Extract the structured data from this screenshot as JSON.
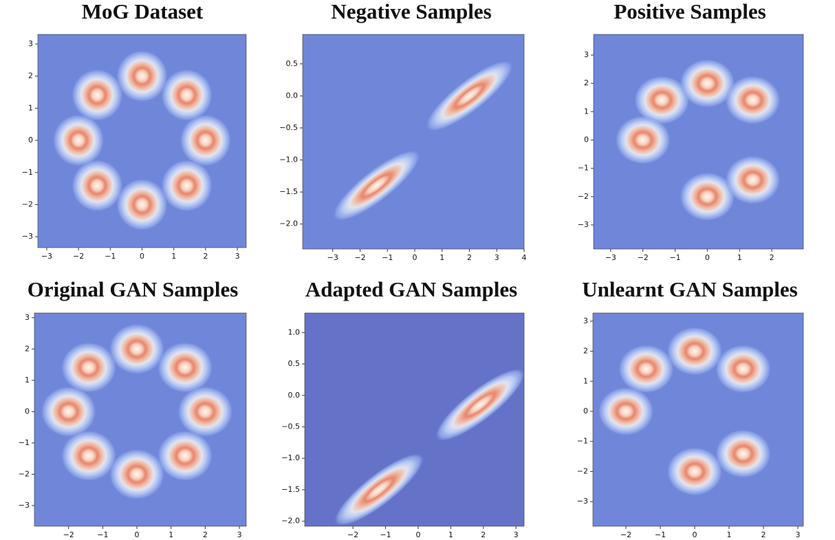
{
  "chart_data": [
    {
      "type": "contour",
      "title": "MoG Dataset",
      "background": "#7086d8",
      "xlim": [
        -3.28,
        3.28
      ],
      "ylim": [
        -3.34,
        3.3
      ],
      "xticks": [
        {
          "value": -3,
          "label": "−3"
        },
        {
          "value": -2,
          "label": "−2"
        },
        {
          "value": -1,
          "label": "−1"
        },
        0,
        1,
        2,
        3
      ],
      "yticks": [
        {
          "value": -3,
          "label": "−3"
        },
        {
          "value": -2,
          "label": "−2"
        },
        {
          "value": -1,
          "label": "−1"
        },
        0,
        1,
        2,
        3
      ],
      "centers": {
        "x": [
          0,
          1.41,
          2,
          1.41,
          0,
          -1.41,
          -2,
          -1.41
        ],
        "y": [
          2,
          1.41,
          0,
          -1.41,
          -2,
          -1.41,
          0,
          1.41
        ]
      }
    },
    {
      "type": "contour",
      "title": "Negative Samples",
      "background": "#7086d8",
      "xlim": [
        -4.1,
        4
      ],
      "ylim": [
        -2.39,
        0.96
      ],
      "xticks": [
        {
          "value": -3,
          "label": "−3"
        },
        {
          "value": -2,
          "label": "−2"
        },
        {
          "value": -1,
          "label": "−1"
        },
        0,
        1,
        2,
        3,
        4
      ],
      "yticks": [
        {
          "value": -2,
          "label": "−2.0"
        },
        {
          "value": -1.5,
          "label": "−1.5"
        },
        {
          "value": -1,
          "label": "−1.0"
        },
        {
          "value": -0.5,
          "label": "−0.5"
        },
        {
          "value": 0,
          "label": "0.0"
        },
        0.5
      ],
      "centers": {
        "x": [
          2,
          -1.4
        ],
        "y": [
          0,
          -1.4
        ]
      }
    },
    {
      "type": "contour",
      "title": "Positive Samples",
      "background": "#7086d8",
      "xlim": [
        -3.53,
        2.98
      ],
      "ylim": [
        -3.85,
        3.73
      ],
      "xticks": [
        {
          "value": -3,
          "label": "−3"
        },
        {
          "value": -2,
          "label": "−2"
        },
        {
          "value": -1,
          "label": "−1"
        },
        0,
        1,
        2
      ],
      "yticks": [
        {
          "value": -3,
          "label": "−3"
        },
        {
          "value": -2,
          "label": "−2"
        },
        {
          "value": -1,
          "label": "−1"
        },
        0,
        1,
        2,
        3
      ],
      "centers": {
        "x": [
          -1.41,
          0,
          1.41,
          -2,
          0,
          1.41
        ],
        "y": [
          1.41,
          2,
          1.41,
          0,
          -2,
          -1.41
        ]
      }
    },
    {
      "type": "contour",
      "title": "Original GAN Samples",
      "background": "#7086d8",
      "xlim": [
        -3.0,
        3.2
      ],
      "ylim": [
        -3.66,
        3.15
      ],
      "xticks": [
        {
          "value": -2,
          "label": "−2"
        },
        {
          "value": -1,
          "label": "−1"
        },
        0,
        1,
        2,
        3
      ],
      "yticks": [
        {
          "value": -3,
          "label": "−3"
        },
        {
          "value": -2,
          "label": "−2"
        },
        {
          "value": -1,
          "label": "−1"
        },
        0,
        1,
        2,
        3
      ],
      "centers": {
        "x": [
          0,
          1.41,
          2,
          1.41,
          0,
          -1.41,
          -2,
          -1.41
        ],
        "y": [
          2,
          1.41,
          0,
          -1.41,
          -2,
          -1.41,
          0,
          1.41
        ]
      }
    },
    {
      "type": "contour",
      "title": "Adapted GAN Samples",
      "background": "#6473c8",
      "xlim": [
        -3.48,
        3.25
      ],
      "ylim": [
        -2.08,
        1.31
      ],
      "xticks": [
        {
          "value": -2,
          "label": "−2"
        },
        {
          "value": -1,
          "label": "−1"
        },
        0,
        1,
        2,
        3
      ],
      "yticks": [
        {
          "value": -2,
          "label": "−2.0"
        },
        {
          "value": -1.5,
          "label": "−1.5"
        },
        {
          "value": -1,
          "label": "−1.0"
        },
        {
          "value": -0.5,
          "label": "−0.5"
        },
        {
          "value": 0,
          "label": "0.0"
        },
        0.5,
        {
          "value": 1,
          "label": "1.0"
        }
      ],
      "centers": {
        "x": [
          1.9,
          -1.2
        ],
        "y": [
          -0.15,
          -1.5
        ]
      }
    },
    {
      "type": "contour",
      "title": "Unlearnt GAN Samples",
      "background": "#7086d8",
      "xlim": [
        -2.96,
        3.16
      ],
      "ylim": [
        -3.82,
        3.27
      ],
      "xticks": [
        {
          "value": -2,
          "label": "−2"
        },
        {
          "value": -1,
          "label": "−1"
        },
        0,
        1,
        2,
        3
      ],
      "yticks": [
        {
          "value": -3,
          "label": "−3"
        },
        {
          "value": -2,
          "label": "−2"
        },
        {
          "value": -1,
          "label": "−1"
        },
        0,
        1,
        2,
        3
      ],
      "centers": {
        "x": [
          -1.41,
          0,
          1.41,
          -2,
          0,
          1.41
        ],
        "y": [
          1.41,
          2,
          1.41,
          0,
          -2,
          -1.41
        ]
      }
    }
  ]
}
